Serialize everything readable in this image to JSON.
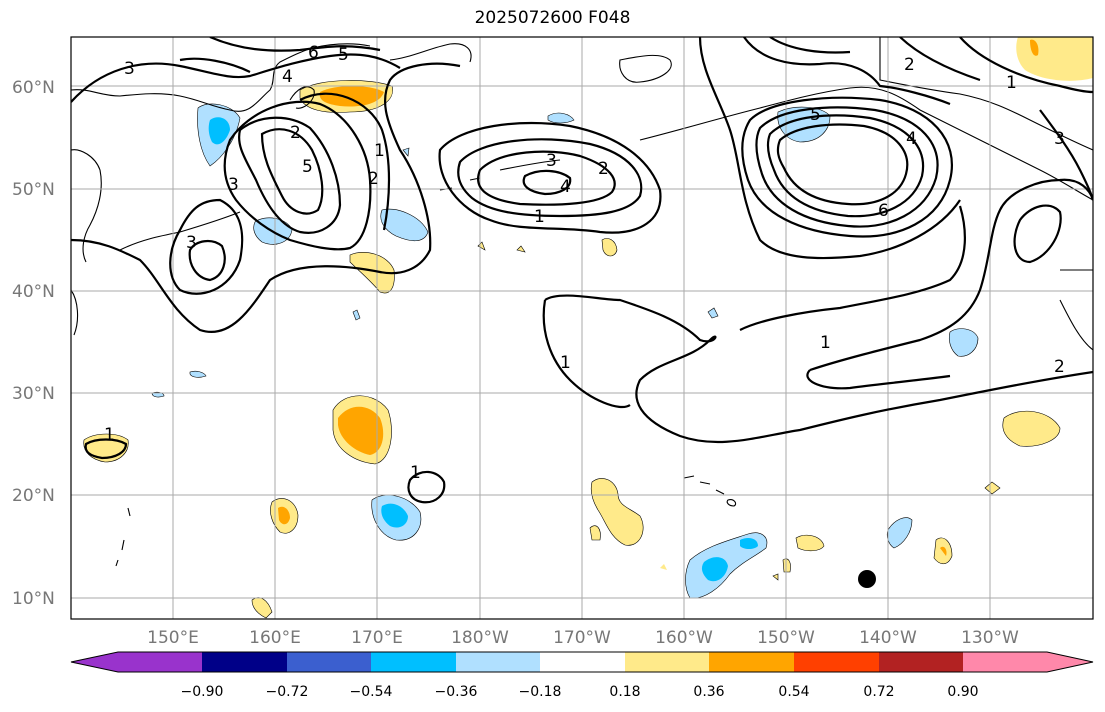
{
  "title": "2025072600 F048",
  "lat_labels": [
    "60°N",
    "50°N",
    "40°N",
    "30°N",
    "20°N",
    "10°N"
  ],
  "lon_labels": [
    "150°E",
    "160°E",
    "170°E",
    "180°W",
    "170°W",
    "160°W",
    "150°W",
    "140°W",
    "130°W"
  ],
  "colorbar": {
    "ticks": [
      "−0.90",
      "−0.72",
      "−0.54",
      "−0.36",
      "−0.18",
      "0.18",
      "0.36",
      "0.54",
      "0.72",
      "0.90"
    ],
    "colors": [
      "#9933cc",
      "#000088",
      "#3b5fcf",
      "#00bfff",
      "#b0e0ff",
      "#ffffff",
      "#ffea8a",
      "#ffa500",
      "#ff4000",
      "#b22222",
      "#ff88aa"
    ]
  },
  "contour_labels": [
    "3",
    "6",
    "5",
    "4",
    "5",
    "2",
    "1",
    "2",
    "3",
    "3",
    "2",
    "4",
    "1",
    "1",
    "3",
    "5",
    "4",
    "6",
    "2",
    "1",
    "3",
    "1",
    "2",
    "1",
    "1"
  ],
  "colors": {
    "yellow": "#ffea8a",
    "orange": "#ffa500",
    "light_blue": "#b0e0ff",
    "blue": "#00bfff"
  }
}
